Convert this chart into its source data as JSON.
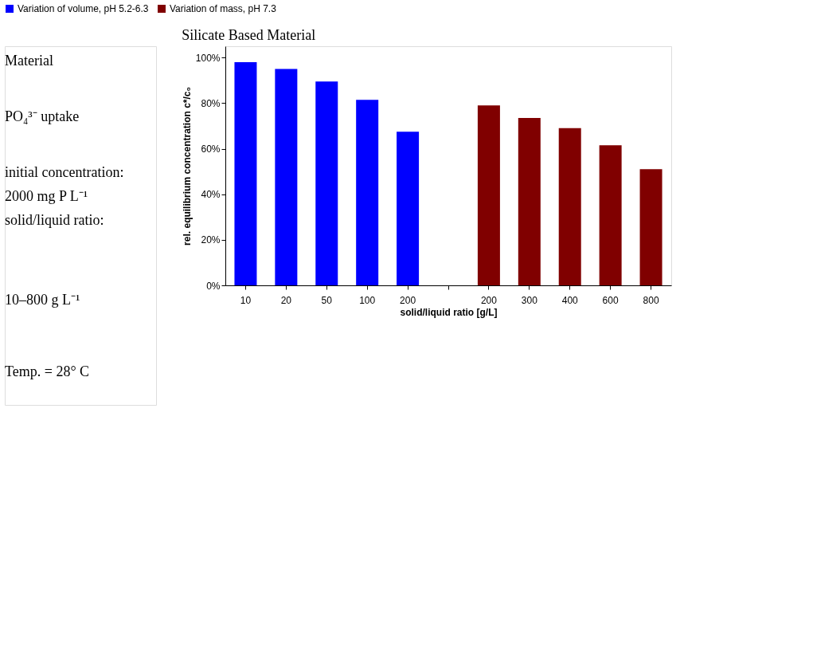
{
  "chart_data": {
    "type": "bar",
    "title": "Silicate Based Material",
    "xlabel": "solid/liquid ratio [g/L]",
    "ylabel": "rel. equilibrium concentration c*/c₀",
    "categories": [
      "10",
      "20",
      "50",
      "100",
      "200",
      null,
      "200",
      "300",
      "400",
      "600",
      "800"
    ],
    "series": [
      {
        "name": "Variation of volume, pH 5.2-6.3",
        "color": "#0000ff",
        "values": [
          98,
          95,
          89.5,
          81.5,
          67.5,
          null,
          null,
          null,
          null,
          null,
          null
        ]
      },
      {
        "name": "Variation of mass, pH 7.3",
        "color": "#800000",
        "values": [
          null,
          null,
          null,
          null,
          null,
          null,
          79,
          73.5,
          69,
          61.5,
          51
        ]
      }
    ],
    "ylim": [
      0,
      105
    ],
    "yticks": [
      {
        "value": 0,
        "label": "0%"
      },
      {
        "value": 20,
        "label": "20%"
      },
      {
        "value": 40,
        "label": "40%"
      },
      {
        "value": 60,
        "label": "60%"
      },
      {
        "value": 80,
        "label": "80%"
      },
      {
        "value": 100,
        "label": "100%"
      }
    ],
    "grid": false,
    "legend": "top",
    "annotations": [
      "Material",
      "PO₄³⁻ uptake",
      "initial concentration:",
      "2000 mg P L⁻¹",
      "solid/liquid ratio:",
      "10–800 g L⁻¹",
      "Temp. = 28° C"
    ]
  }
}
